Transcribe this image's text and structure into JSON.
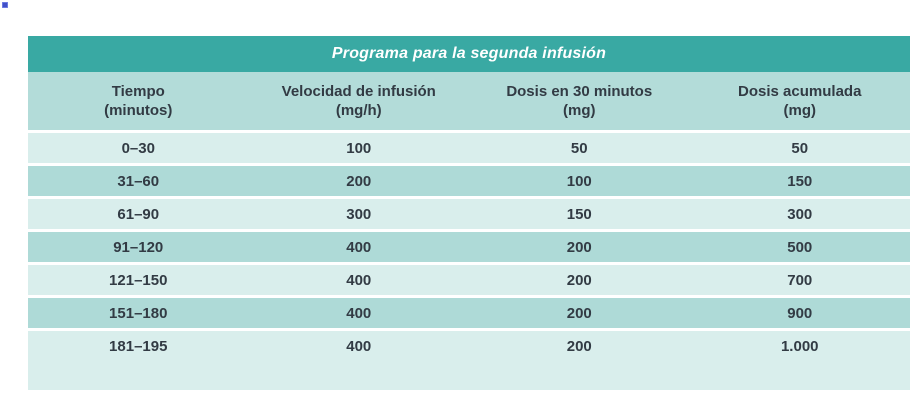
{
  "page": {
    "stray_dot_color": "#4150c8"
  },
  "table": {
    "title": "Programa para la segunda infusión",
    "columns": [
      {
        "line1": "Tiempo",
        "line2": "(minutos)"
      },
      {
        "line1": "Velocidad de infusión",
        "line2": "(mg/h)"
      },
      {
        "line1": "Dosis en 30 minutos",
        "line2": "(mg)"
      },
      {
        "line1": "Dosis acumulada",
        "line2": "(mg)"
      }
    ],
    "rows": [
      [
        "0–30",
        "100",
        "50",
        "50"
      ],
      [
        "31–60",
        "200",
        "100",
        "150"
      ],
      [
        "61–90",
        "300",
        "150",
        "300"
      ],
      [
        "91–120",
        "400",
        "200",
        "500"
      ],
      [
        "121–150",
        "400",
        "200",
        "700"
      ],
      [
        "151–180",
        "400",
        "200",
        "900"
      ],
      [
        "181–195",
        "400",
        "200",
        "1.000"
      ]
    ],
    "colors": {
      "title_bar": "#39a9a3",
      "header_band": "#b3dcd9",
      "row_pale": "#d9eeec",
      "row_medium": "#aedad7",
      "text_dark": "#323b44",
      "title_text": "#ffffff"
    }
  }
}
